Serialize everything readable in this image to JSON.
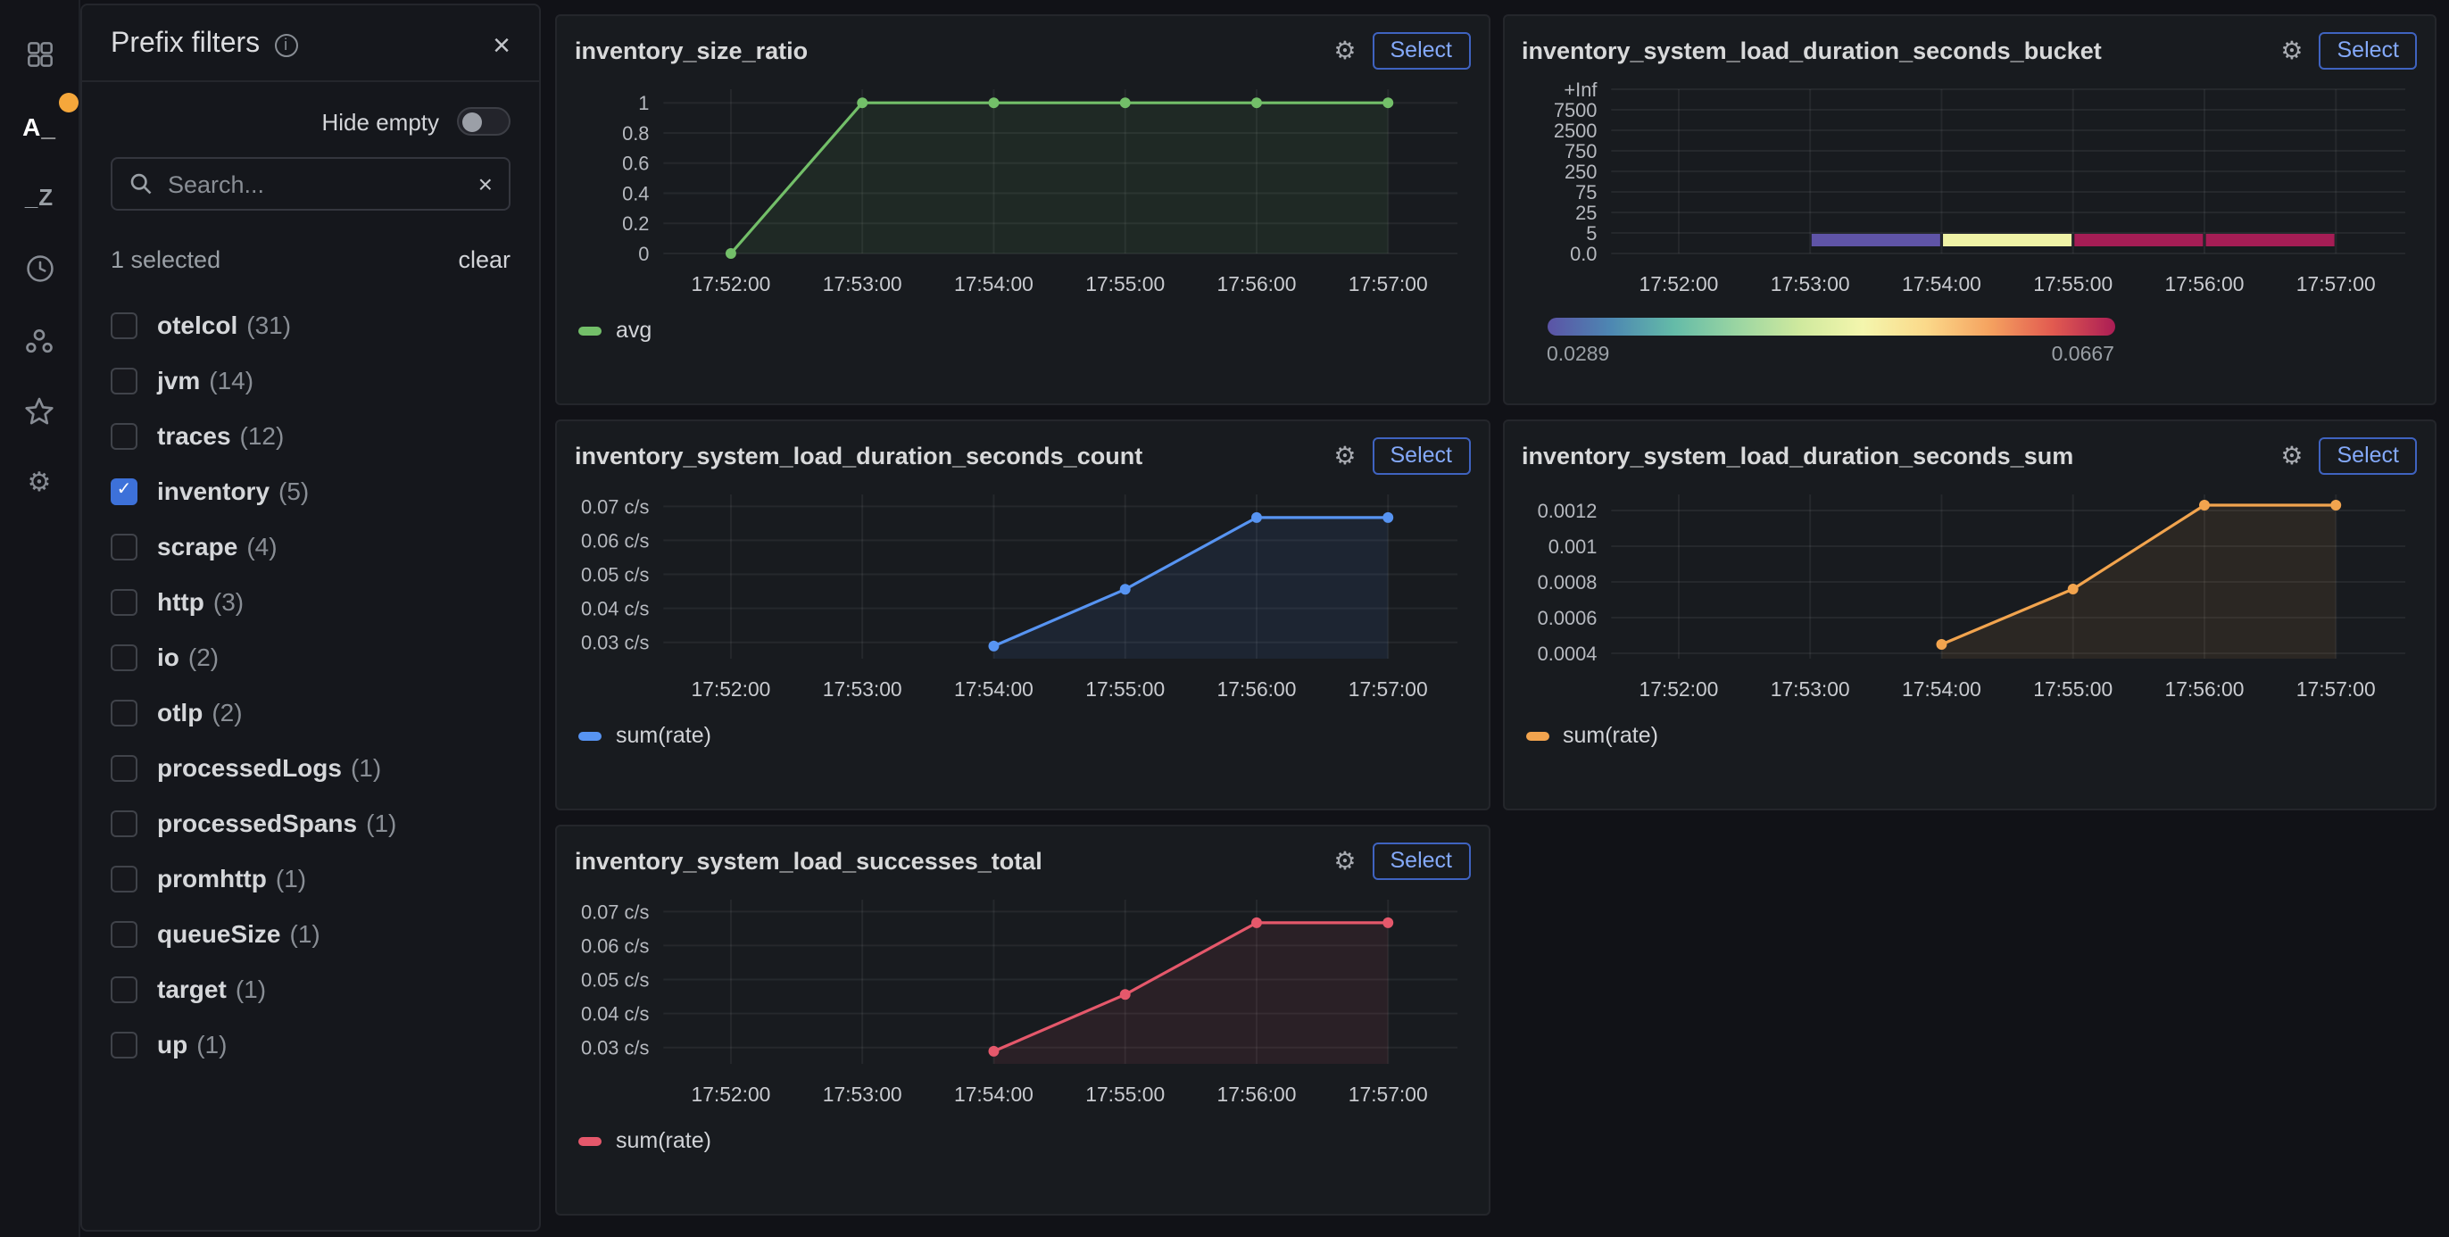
{
  "sidebar": {
    "items": [
      {
        "icon": "apps-grid-icon"
      },
      {
        "icon": "prefix-filters-icon",
        "label": "A_",
        "active": true,
        "badge": true
      },
      {
        "icon": "suffix-filters-icon",
        "label": "_Z"
      },
      {
        "icon": "clock-icon"
      },
      {
        "icon": "group-icon"
      },
      {
        "icon": "star-icon"
      },
      {
        "icon": "gear-icon"
      }
    ],
    "accent_color": "#f5a73b"
  },
  "drawer": {
    "title": "Prefix filters",
    "close_label": "×",
    "hide_empty_label": "Hide empty",
    "hide_empty_on": false,
    "search_placeholder": "Search...",
    "search_value": "",
    "search_clear_label": "×",
    "selected_summary": "1 selected",
    "clear_label": "clear",
    "filters": [
      {
        "label": "otelcol",
        "count": "(31)",
        "checked": false
      },
      {
        "label": "jvm",
        "count": "(14)",
        "checked": false
      },
      {
        "label": "traces",
        "count": "(12)",
        "checked": false
      },
      {
        "label": "inventory",
        "count": "(5)",
        "checked": true
      },
      {
        "label": "scrape",
        "count": "(4)",
        "checked": false
      },
      {
        "label": "http",
        "count": "(3)",
        "checked": false
      },
      {
        "label": "io",
        "count": "(2)",
        "checked": false
      },
      {
        "label": "otlp",
        "count": "(2)",
        "checked": false
      },
      {
        "label": "processedLogs",
        "count": "(1)",
        "checked": false
      },
      {
        "label": "processedSpans",
        "count": "(1)",
        "checked": false
      },
      {
        "label": "promhttp",
        "count": "(1)",
        "checked": false
      },
      {
        "label": "queueSize",
        "count": "(1)",
        "checked": false
      },
      {
        "label": "target",
        "count": "(1)",
        "checked": false
      },
      {
        "label": "up",
        "count": "(1)",
        "checked": false
      }
    ],
    "checkbox_checked_color": "#3d71d9"
  },
  "panels": {
    "select_label": "Select"
  },
  "chart_data": [
    {
      "type": "line",
      "title": "inventory_size_ratio",
      "legend": "avg",
      "color": "#73bf69",
      "x_ticks": [
        "17:52:00",
        "17:53:00",
        "17:54:00",
        "17:55:00",
        "17:56:00",
        "17:57:00"
      ],
      "values": [
        0,
        1,
        1,
        1,
        1,
        1
      ],
      "y_ticks": [
        {
          "v": 0,
          "label": "0"
        },
        {
          "v": 0.2,
          "label": "0.2"
        },
        {
          "v": 0.4,
          "label": "0.4"
        },
        {
          "v": 0.6,
          "label": "0.6"
        },
        {
          "v": 0.8,
          "label": "0.8"
        },
        {
          "v": 1,
          "label": "1"
        }
      ],
      "ylim": [
        0,
        1.09
      ],
      "grid": true,
      "legend_position": "bottom"
    },
    {
      "type": "heatmap",
      "title": "inventory_system_load_duration_seconds_bucket",
      "x_ticks": [
        "17:52:00",
        "17:53:00",
        "17:54:00",
        "17:55:00",
        "17:56:00",
        "17:57:00"
      ],
      "y_labels": [
        "+Inf",
        "7500",
        "2500",
        "750",
        "250",
        "75",
        "25",
        "5",
        "0.0"
      ],
      "cells": [
        {
          "from": "17:53:00",
          "to": "17:54:00",
          "bucket": "0-5",
          "value": 0.0289,
          "color": "#5f54a7"
        },
        {
          "from": "17:54:00",
          "to": "17:55:00",
          "bucket": "0-5",
          "value": 0.0456,
          "color": "#eff2a6"
        },
        {
          "from": "17:55:00",
          "to": "17:56:00",
          "bucket": "0-5",
          "value": 0.0667,
          "color": "#a51d55"
        },
        {
          "from": "17:56:00",
          "to": "17:57:00",
          "bucket": "0-5",
          "value": 0.0667,
          "color": "#a51d55"
        }
      ],
      "colorbar": {
        "min_label": "0.0289",
        "max_label": "0.0667",
        "gradient": [
          "#5b53a6",
          "#4d87b2",
          "#64bba8",
          "#9ad5a2",
          "#cfe99e",
          "#f4f6ad",
          "#fbd98a",
          "#f5a360",
          "#e25b50",
          "#ab1d55"
        ]
      },
      "grid": true
    },
    {
      "type": "line",
      "title": "inventory_system_load_duration_seconds_count",
      "legend": "sum(rate)",
      "color": "#5794f2",
      "x_ticks": [
        "17:52:00",
        "17:53:00",
        "17:54:00",
        "17:55:00",
        "17:56:00",
        "17:57:00"
      ],
      "values": [
        null,
        null,
        0.0289,
        0.0456,
        0.0667,
        0.0667
      ],
      "y_ticks": [
        {
          "v": 0.03,
          "label": "0.03 c/s"
        },
        {
          "v": 0.04,
          "label": "0.04 c/s"
        },
        {
          "v": 0.05,
          "label": "0.05 c/s"
        },
        {
          "v": 0.06,
          "label": "0.06 c/s"
        },
        {
          "v": 0.07,
          "label": "0.07 c/s"
        }
      ],
      "ylim": [
        0.0252,
        0.0735
      ],
      "grid": true,
      "legend_position": "bottom"
    },
    {
      "type": "line",
      "title": "inventory_system_load_duration_seconds_sum",
      "legend": "sum(rate)",
      "color": "#f2a44e",
      "x_ticks": [
        "17:52:00",
        "17:53:00",
        "17:54:00",
        "17:55:00",
        "17:56:00",
        "17:57:00"
      ],
      "values": [
        null,
        null,
        0.00045,
        0.00076,
        0.00123,
        0.00123
      ],
      "y_ticks": [
        {
          "v": 0.0004,
          "label": "0.0004"
        },
        {
          "v": 0.0006,
          "label": "0.0006"
        },
        {
          "v": 0.0008,
          "label": "0.0008"
        },
        {
          "v": 0.001,
          "label": "0.001"
        },
        {
          "v": 0.0012,
          "label": "0.0012"
        }
      ],
      "ylim": [
        0.00037,
        0.00129
      ],
      "grid": true,
      "legend_position": "bottom"
    },
    {
      "type": "line",
      "title": "inventory_system_load_successes_total",
      "legend": "sum(rate)",
      "color": "#e5586b",
      "x_ticks": [
        "17:52:00",
        "17:53:00",
        "17:54:00",
        "17:55:00",
        "17:56:00",
        "17:57:00"
      ],
      "values": [
        null,
        null,
        0.0289,
        0.0456,
        0.0667,
        0.0667
      ],
      "y_ticks": [
        {
          "v": 0.03,
          "label": "0.03 c/s"
        },
        {
          "v": 0.04,
          "label": "0.04 c/s"
        },
        {
          "v": 0.05,
          "label": "0.05 c/s"
        },
        {
          "v": 0.06,
          "label": "0.06 c/s"
        },
        {
          "v": 0.07,
          "label": "0.07 c/s"
        }
      ],
      "ylim": [
        0.0252,
        0.0735
      ],
      "grid": true,
      "legend_position": "bottom"
    }
  ]
}
